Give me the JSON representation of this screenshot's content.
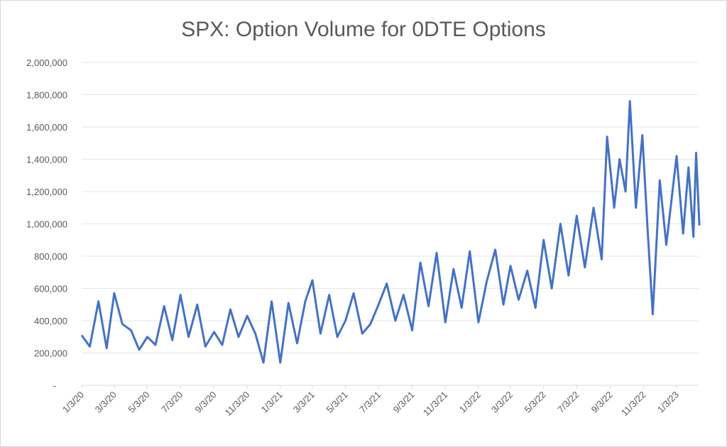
{
  "chart_data": {
    "type": "line",
    "title": "SPX: Option Volume for 0DTE Options",
    "xlabel": "",
    "ylabel": "",
    "ylim": [
      0,
      2000000
    ],
    "y_ticks": [
      0,
      200000,
      400000,
      600000,
      800000,
      1000000,
      1200000,
      1400000,
      1600000,
      1800000,
      2000000
    ],
    "y_tick_labels": [
      "-",
      "200,000",
      "400,000",
      "600,000",
      "800,000",
      "1,000,000",
      "1,200,000",
      "1,400,000",
      "1,600,000",
      "1,800,000",
      "2,000,000"
    ],
    "x_tick_labels": [
      "1/3/20",
      "3/3/20",
      "5/3/20",
      "7/3/20",
      "9/3/20",
      "11/3/20",
      "1/3/21",
      "3/3/21",
      "5/3/21",
      "7/3/21",
      "9/3/21",
      "11/3/21",
      "1/3/22",
      "3/3/22",
      "5/3/22",
      "7/3/22",
      "9/3/22",
      "11/3/22",
      "1/3/23"
    ],
    "grid": true,
    "legend": "none",
    "line_color": "#4472C4",
    "series": [
      {
        "x": [
          "1/3/20",
          "1/18/20",
          "2/3/20",
          "2/18/20",
          "3/3/20",
          "3/18/20",
          "4/3/20",
          "4/18/20",
          "5/3/20",
          "5/18/20",
          "6/3/20",
          "6/18/20",
          "7/3/20",
          "7/18/20",
          "8/3/20",
          "8/18/20",
          "9/3/20",
          "9/18/20",
          "10/3/20",
          "10/18/20",
          "11/3/20",
          "11/18/20",
          "12/3/20",
          "12/18/20",
          "1/3/21",
          "1/18/21",
          "2/3/21",
          "2/18/21",
          "3/3/21",
          "3/18/21",
          "4/3/21",
          "4/18/21",
          "5/3/21",
          "5/18/21",
          "6/3/21",
          "6/18/21",
          "7/3/21",
          "7/18/21",
          "8/3/21",
          "8/18/21",
          "9/3/21",
          "9/18/21",
          "10/3/21",
          "10/18/21",
          "11/3/21",
          "11/18/21",
          "12/3/21",
          "12/18/21",
          "1/3/22",
          "1/18/22",
          "2/3/22",
          "2/18/22",
          "3/3/22",
          "3/18/22",
          "4/3/22",
          "4/18/22",
          "5/3/22",
          "5/18/22",
          "6/3/22",
          "6/18/22",
          "7/3/22",
          "7/18/22",
          "8/3/22",
          "8/18/22",
          "8/28/22",
          "9/10/22",
          "9/20/22",
          "10/1/22",
          "10/9/22",
          "10/20/22",
          "11/1/22",
          "11/10/22",
          "11/20/22",
          "12/3/22",
          "12/15/22",
          "1/3/23",
          "1/15/23",
          "1/25/23",
          "2/3/23",
          "2/8/23",
          "2/14/23"
        ],
        "values": [
          310000,
          240000,
          520000,
          230000,
          570000,
          380000,
          340000,
          220000,
          300000,
          250000,
          490000,
          280000,
          560000,
          300000,
          500000,
          240000,
          330000,
          250000,
          470000,
          300000,
          430000,
          320000,
          140000,
          520000,
          140000,
          510000,
          260000,
          520000,
          650000,
          320000,
          560000,
          300000,
          400000,
          570000,
          320000,
          380000,
          500000,
          630000,
          400000,
          560000,
          340000,
          760000,
          490000,
          820000,
          390000,
          720000,
          480000,
          830000,
          390000,
          640000,
          840000,
          500000,
          740000,
          530000,
          710000,
          480000,
          900000,
          600000,
          1000000,
          680000,
          1050000,
          730000,
          1100000,
          780000,
          1540000,
          1100000,
          1400000,
          1200000,
          1760000,
          1100000,
          1550000,
          1000000,
          440000,
          1270000,
          870000,
          1420000,
          940000,
          1350000,
          920000,
          1440000,
          990000
        ]
      }
    ]
  }
}
